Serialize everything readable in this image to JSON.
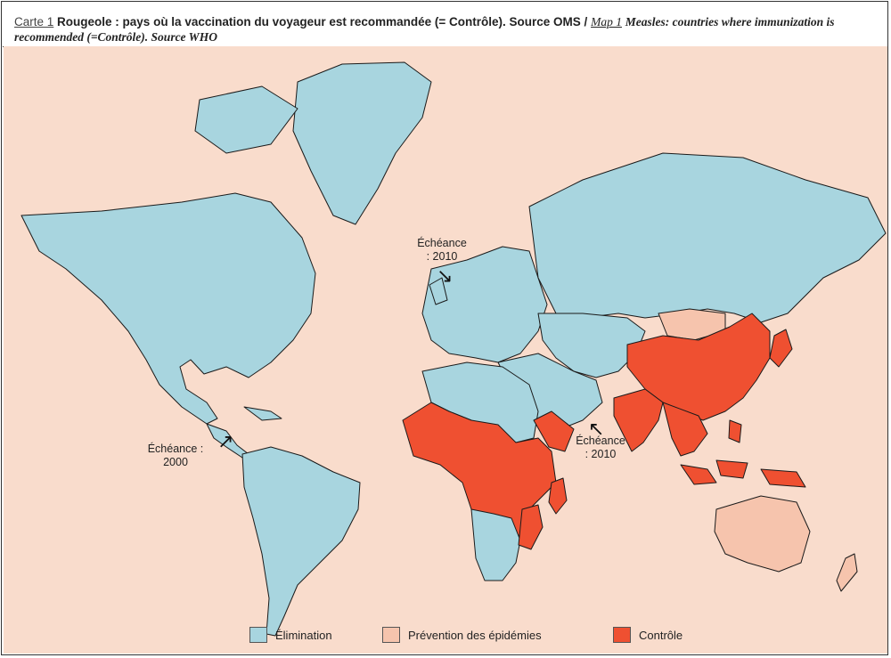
{
  "caption": {
    "fr_label": "Carte 1",
    "fr_text": "Rougeole : pays où la vaccination du voyageur est recommandée (= Contrôle). Source OMS /",
    "en_label": "Map 1",
    "en_text": "Measles: countries where immunization is recommended (=Contrôle). Source WHO"
  },
  "annotations": {
    "europe_deadline": "Échéance : 2010",
    "americas_deadline": "Échéance : 2000",
    "emr_deadline": "Échéance : 2010"
  },
  "legend": [
    {
      "label": "Élimination",
      "color": "#a8d5df"
    },
    {
      "label": "Prévention des épidémies",
      "color": "#f6c4ad"
    },
    {
      "label": "Contrôle",
      "color": "#ef5031"
    }
  ],
  "colors": {
    "ocean": "#f9dccc",
    "elimination": "#a8d5df",
    "prevention": "#f6c4ad",
    "controle": "#ef5031",
    "border": "#1a1a1a"
  },
  "icons": {
    "arrow": "arrow-icon"
  }
}
